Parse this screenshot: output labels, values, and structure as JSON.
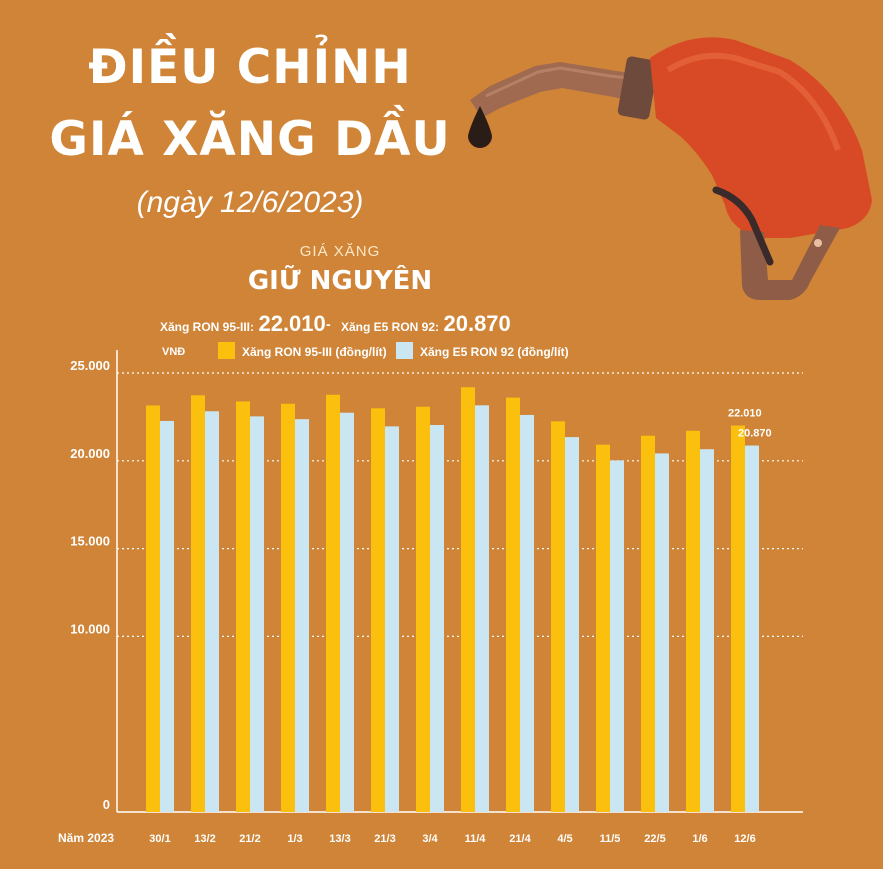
{
  "title": [
    "ĐIỀU CHỈNH",
    "GIÁ XĂNG DẦU"
  ],
  "subtitle": "(ngày 12/6/2023)",
  "kicker": "GIÁ XĂNG",
  "status": "GIỮ NGUYÊN",
  "prices": {
    "a_label": "Xăng RON 95-III:",
    "a_value": "22.010",
    "separator": "-",
    "b_label": "Xăng E5 RON 92:",
    "b_value": "20.870"
  },
  "colors": {
    "background": "#cf8437",
    "series_a": "#fbbf0e",
    "series_b": "#c9e6f2",
    "nozzle": "#d84a25"
  },
  "icons": [
    "fuel-nozzle-icon",
    "oil-drop-icon"
  ],
  "chart_data": {
    "type": "bar",
    "unit_label": "VNĐ",
    "x_axis_caption": "Năm 2023",
    "categories": [
      "30/1",
      "13/2",
      "21/2",
      "1/3",
      "13/3",
      "21/3",
      "3/4",
      "11/4",
      "21/4",
      "4/5",
      "11/5",
      "22/5",
      "1/6",
      "12/6"
    ],
    "series": [
      {
        "name": "Xăng RON 95-III (đồng/lít)",
        "values": [
          23150,
          23730,
          23380,
          23250,
          23760,
          22990,
          23080,
          24190,
          23600,
          22250,
          20920,
          21430,
          21710,
          22010
        ]
      },
      {
        "name": "Xăng E5 RON 92 (đồng/lít)",
        "values": [
          22270,
          22820,
          22530,
          22370,
          22740,
          21960,
          22040,
          23160,
          22610,
          21350,
          20020,
          20420,
          20660,
          20870
        ]
      }
    ],
    "yticks": [
      "0",
      "10.000",
      "15.000",
      "20.000",
      "25.000"
    ],
    "ytick_values": [
      0,
      10000,
      15000,
      20000,
      25000
    ],
    "ylim": [
      0,
      25000
    ],
    "data_labels": [
      "22.010",
      "20.870"
    ],
    "grid": true,
    "legend": "top"
  }
}
